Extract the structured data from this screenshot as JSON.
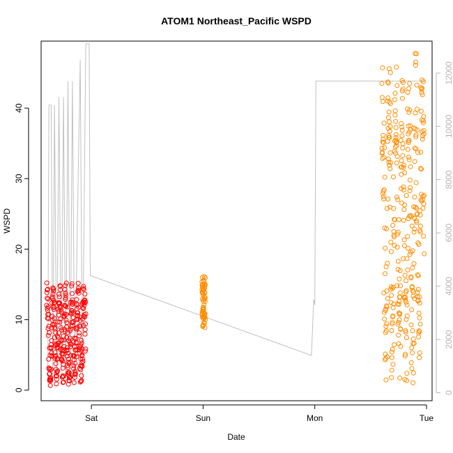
{
  "chart_data": {
    "type": "scatter",
    "title": "ATOM1 Northeast_Pacific WSPD",
    "xlabel": "Date",
    "ylabel": "WSPD",
    "x_ticks": [
      "Sat",
      "Sun",
      "Mon",
      "Tue"
    ],
    "y_ticks": [
      0,
      10,
      20,
      30,
      40
    ],
    "y_right_ticks": [
      0,
      2000,
      4000,
      6000,
      8000,
      10000,
      12000
    ],
    "xlim": [
      -0.45,
      3.05
    ],
    "ylim": [
      -1.5,
      49.5
    ],
    "y_right_lim": [
      -300,
      13200
    ],
    "grid": false,
    "legend": "none",
    "colors": {
      "red_series": "#ff0000",
      "orange_series": "#ff8c00",
      "line_series": "#c0c0c0",
      "right_axis": "#b5b5b5"
    },
    "series": [
      {
        "marker": "open-circle",
        "color": "#ff0000",
        "clusters": [
          {
            "x_start": -0.4,
            "x_end": -0.05,
            "y_low": 0.5,
            "y_high": 15.3
          }
        ]
      },
      {
        "marker": "open-circle",
        "color": "#ff8c00",
        "clusters": [
          {
            "x_start": 0.99,
            "x_end": 1.02,
            "y_low": 8.4,
            "y_high": 16.6
          },
          {
            "x_start": 2.6,
            "x_end": 2.98,
            "y_low": 0.4,
            "y_high": 48.0
          }
        ]
      },
      {
        "type": "line",
        "color": "#c0c0c0",
        "axis": "right",
        "points": [
          [
            -0.39,
            400
          ],
          [
            -0.38,
            10800
          ],
          [
            -0.36,
            10800
          ],
          [
            -0.345,
            400
          ],
          [
            -0.33,
            10800
          ],
          [
            -0.31,
            400
          ],
          [
            -0.29,
            11100
          ],
          [
            -0.27,
            400
          ],
          [
            -0.25,
            11100
          ],
          [
            -0.23,
            400
          ],
          [
            -0.21,
            11700
          ],
          [
            -0.19,
            400
          ],
          [
            -0.17,
            11700
          ],
          [
            -0.15,
            400
          ],
          [
            -0.1,
            12500
          ],
          [
            -0.08,
            400
          ],
          [
            -0.05,
            13100
          ],
          [
            -0.02,
            13100
          ],
          [
            -0.01,
            4400
          ],
          [
            1.97,
            1400
          ],
          [
            1.99,
            3500
          ],
          [
            2.0,
            3300
          ],
          [
            2.01,
            11700
          ],
          [
            2.99,
            11700
          ]
        ]
      }
    ]
  }
}
